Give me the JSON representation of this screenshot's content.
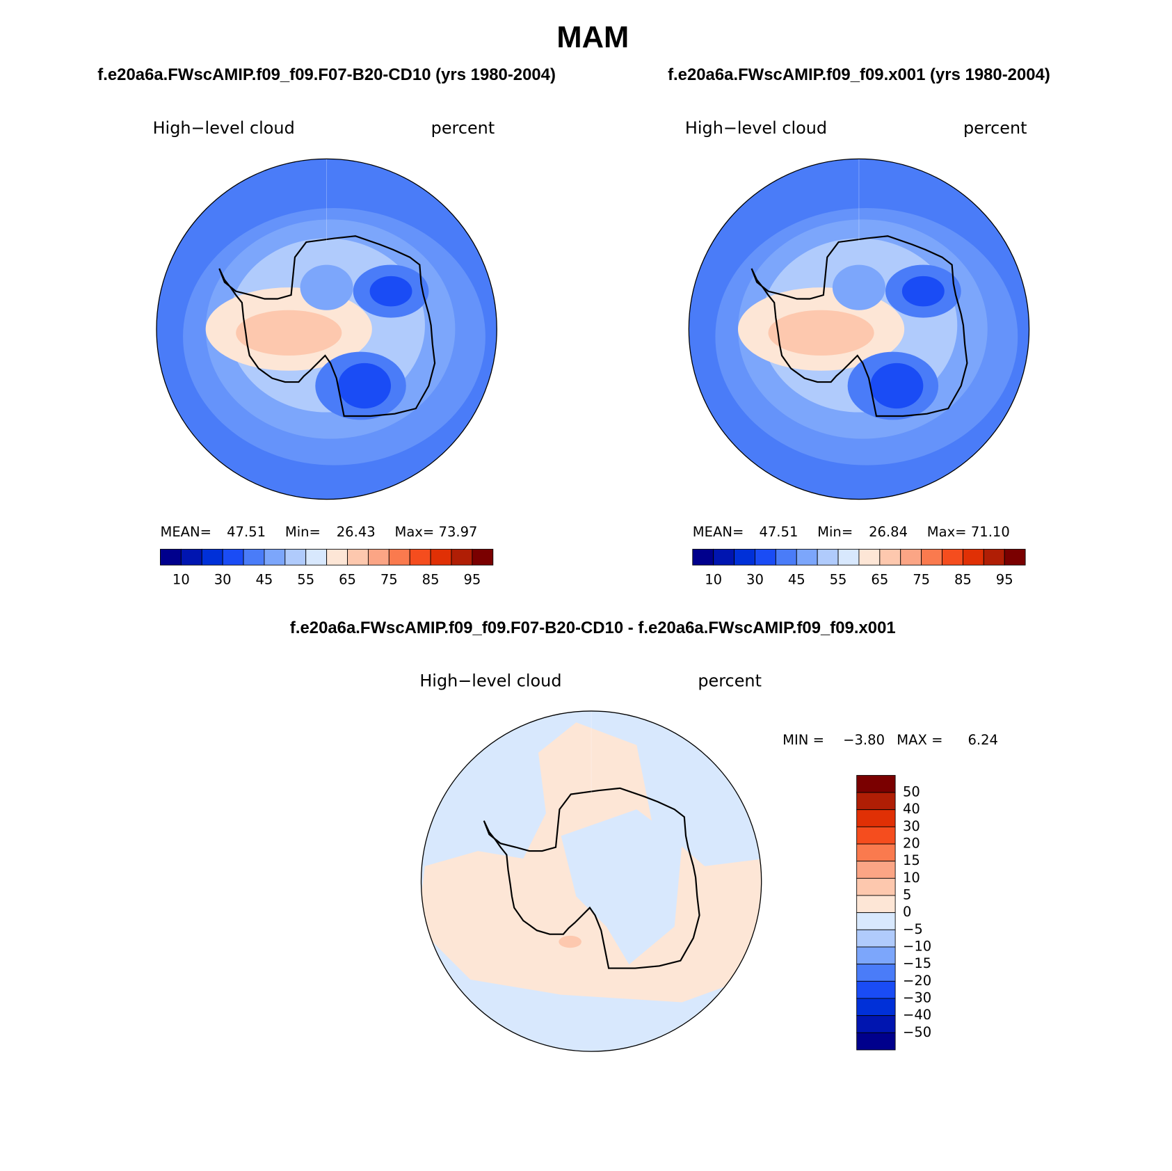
{
  "title": "MAM",
  "panels": [
    {
      "case": "f.e20a6a.FWscAMIP.f09_f09.F07-B20-CD10 (yrs 1980-2004)",
      "variable": "High−level cloud",
      "units": "percent",
      "stats": {
        "mean_label": "MEAN=",
        "mean": "47.51",
        "min_label": "Min=",
        "min": "26.43",
        "max_label": "Max=",
        "max": "73.97"
      },
      "colorbar_labels": [
        "10",
        "30",
        "45",
        "55",
        "65",
        "75",
        "85",
        "95"
      ]
    },
    {
      "case": "f.e20a6a.FWscAMIP.f09_f09.x001 (yrs 1980-2004)",
      "variable": "High−level cloud",
      "units": "percent",
      "stats": {
        "mean_label": "MEAN=",
        "mean": "47.51",
        "min_label": "Min=",
        "min": "26.84",
        "max_label": "Max=",
        "max": "71.10"
      },
      "colorbar_labels": [
        "10",
        "30",
        "45",
        "55",
        "65",
        "75",
        "85",
        "95"
      ]
    }
  ],
  "diff": {
    "case": "f.e20a6a.FWscAMIP.f09_f09.F07-B20-CD10 - f.e20a6a.FWscAMIP.f09_f09.x001",
    "variable": "High−level cloud",
    "units": "percent",
    "stats": {
      "min_label": "MIN =",
      "min": "−3.80",
      "max_label": "MAX =",
      "max": "6.24"
    },
    "colorbar_labels": [
      "50",
      "40",
      "30",
      "20",
      "15",
      "10",
      "5",
      "0",
      "−5",
      "−10",
      "−15",
      "−20",
      "−30",
      "−40",
      "−50"
    ]
  },
  "colors": [
    "#00008c",
    "#0015b0",
    "#0030d8",
    "#1a4cf5",
    "#4a7cf8",
    "#7ca6fb",
    "#b0cbfc",
    "#d8e8fd",
    "#fde6d6",
    "#fdc8ae",
    "#fba585",
    "#fa7a4e",
    "#f54d1e",
    "#e03005",
    "#b01e05",
    "#7a0000"
  ]
}
